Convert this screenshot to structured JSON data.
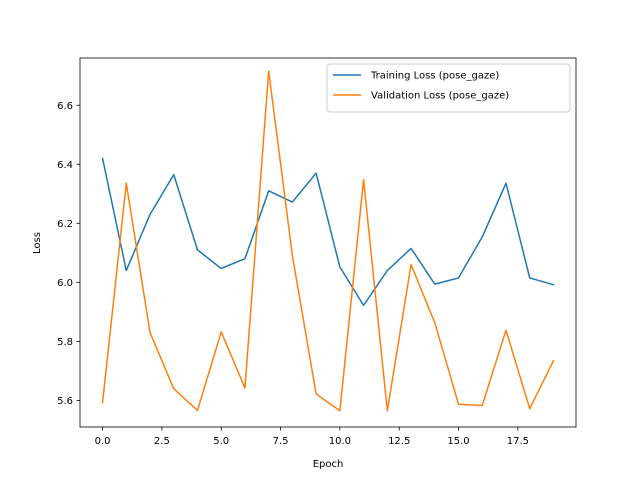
{
  "chart_data": {
    "type": "line",
    "xlabel": "Epoch",
    "ylabel": "Loss",
    "xlim": [
      -0.95,
      19.95
    ],
    "ylim": [
      5.51,
      6.76
    ],
    "x_ticks": [
      0,
      2.5,
      5,
      7.5,
      10,
      12.5,
      15,
      17.5
    ],
    "x_tick_labels": [
      "0.0",
      "2.5",
      "5.0",
      "7.5",
      "10.0",
      "12.5",
      "15.0",
      "17.5"
    ],
    "y_ticks": [
      5.6,
      5.8,
      6.0,
      6.2,
      6.4,
      6.6
    ],
    "y_tick_labels": [
      "5.6",
      "5.8",
      "6.0",
      "6.2",
      "6.4",
      "6.6"
    ],
    "grid": false,
    "legend_position": "top-right",
    "x": [
      0,
      1,
      2,
      3,
      4,
      5,
      6,
      7,
      8,
      9,
      10,
      11,
      12,
      13,
      14,
      15,
      16,
      17,
      18,
      19
    ],
    "series": [
      {
        "name": "Training Loss (pose_gaze)",
        "color": "#1f77b4",
        "values": [
          6.42,
          6.04,
          6.23,
          6.365,
          6.11,
          6.047,
          6.08,
          6.31,
          6.272,
          6.37,
          6.052,
          5.922,
          6.04,
          6.115,
          5.994,
          6.015,
          6.154,
          6.336,
          6.015,
          5.992
        ]
      },
      {
        "name": "Validation Loss (pose_gaze)",
        "color": "#ff7f0e",
        "values": [
          5.592,
          6.336,
          5.83,
          5.64,
          5.566,
          5.832,
          5.642,
          6.716,
          6.09,
          5.622,
          5.565,
          6.348,
          5.565,
          6.06,
          5.863,
          5.587,
          5.583,
          5.838,
          5.572,
          5.735
        ]
      }
    ]
  }
}
